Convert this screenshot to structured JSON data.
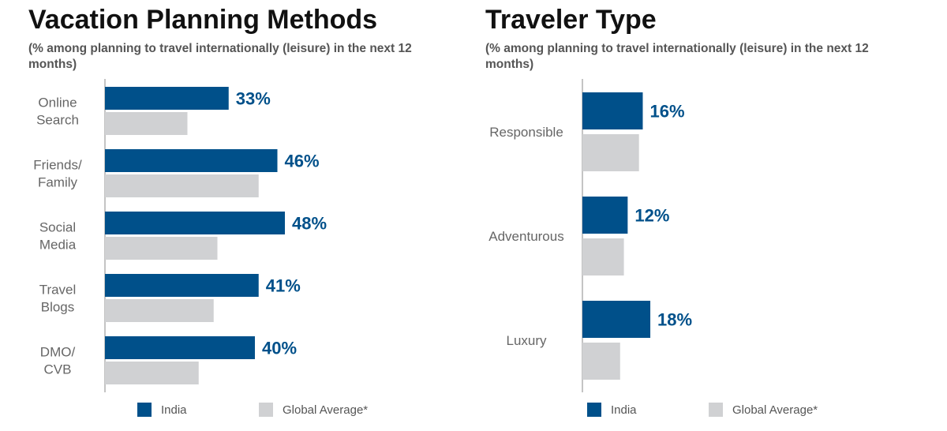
{
  "colors": {
    "india": "#00508a",
    "global": "#d0d1d3",
    "axis": "#888888",
    "label": "#666666"
  },
  "chart_data": [
    {
      "type": "bar",
      "orientation": "horizontal",
      "title": "Vacation Planning Methods",
      "subtitle": "(% among planning to travel internationally (leisure) in the next 12 months)",
      "categories": [
        [
          "Online",
          "Search"
        ],
        [
          "Friends/",
          "Family"
        ],
        [
          "Social",
          "Media"
        ],
        [
          "Travel",
          "Blogs"
        ],
        [
          "DMO/",
          "CVB"
        ]
      ],
      "series": [
        {
          "name": "India",
          "values": [
            33,
            46,
            48,
            41,
            40
          ],
          "labels": [
            "33%",
            "46%",
            "48%",
            "41%",
            "40%"
          ]
        },
        {
          "name": "Global Average*",
          "values": [
            22,
            41,
            30,
            29,
            25
          ]
        }
      ],
      "xlim": [
        0,
        60
      ],
      "legend": "bottom"
    },
    {
      "type": "bar",
      "orientation": "horizontal",
      "title": "Traveler Type",
      "subtitle": "(% among planning to travel internationally (leisure) in the next 12 months)",
      "categories": [
        [
          "Responsible"
        ],
        [
          "Adventurous"
        ],
        [
          "Luxury"
        ]
      ],
      "series": [
        {
          "name": "India",
          "values": [
            16,
            12,
            18
          ],
          "labels": [
            "16%",
            "12%",
            "18%"
          ]
        },
        {
          "name": "Global Average*",
          "values": [
            15,
            11,
            10
          ]
        }
      ],
      "xlim": [
        0,
        60
      ],
      "legend": "bottom"
    }
  ]
}
